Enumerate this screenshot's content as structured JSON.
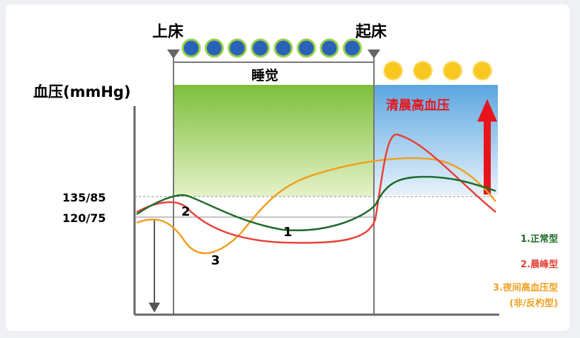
{
  "header": {
    "bedtime": "上床",
    "wake": "起床",
    "sleep": "睡觉",
    "y_label": "血压(mmHg)",
    "morning_label": "清晨高血压"
  },
  "ticks": {
    "upper": "135/85",
    "lower": "120/75"
  },
  "curve_labels": {
    "c1": "1",
    "c2": "2",
    "c3": "3"
  },
  "legend": {
    "normal": "1.正常型",
    "morning_peak": "2.晨峰型",
    "nocturnal": "3.夜间高血压型",
    "nocturnal_sub": "(非/反杓型)"
  },
  "colors": {
    "normal": "#1e6b2a",
    "morning_peak": "#e8423a",
    "nocturnal": "#f0a020",
    "sleep_zone": "#7cbf3a",
    "morning_zone": "#5aa6e0",
    "arrow": "#e8141c"
  },
  "icons": {
    "moon_count": 8,
    "sun_count": 4
  }
}
